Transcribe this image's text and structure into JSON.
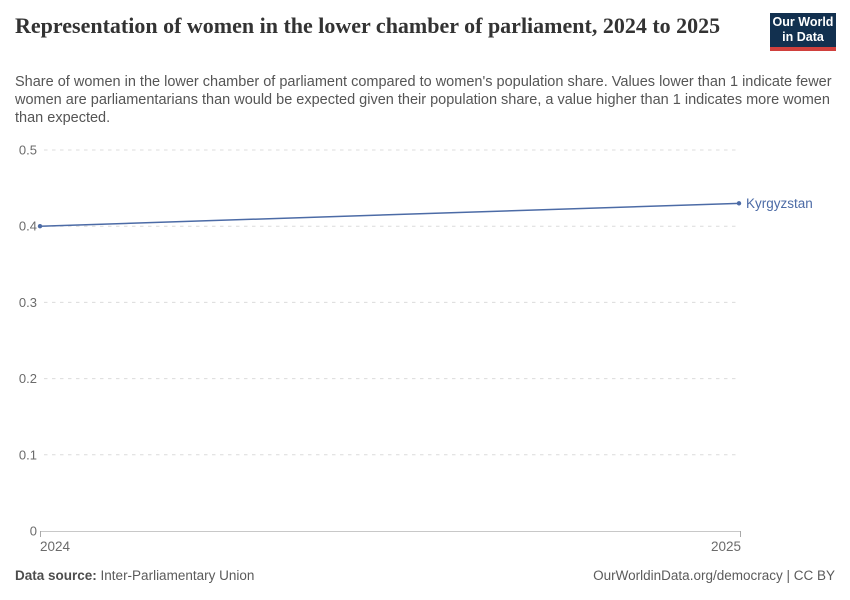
{
  "header": {
    "title": "Representation of women in the lower chamber of parliament, 2024 to 2025",
    "subtitle": "Share of women in the lower chamber of parliament compared to women's population share. Values lower than 1 indicate fewer women are parliamentarians than would be expected given their population share, a value higher than 1 indicates more women than expected.",
    "logo": {
      "line1": "Our World",
      "line2": "in Data"
    }
  },
  "chart_data": {
    "type": "line",
    "title": "Representation of women in the lower chamber of parliament, 2024 to 2025",
    "x": [
      2024,
      2025
    ],
    "x_tick_labels": [
      "2024",
      "2025"
    ],
    "series": [
      {
        "name": "Kyrgyzstan",
        "values": [
          0.4,
          0.43
        ],
        "color": "#4c6ba6"
      }
    ],
    "xlabel": "",
    "ylabel": "",
    "ylim": [
      0,
      0.5
    ],
    "y_ticks": [
      0,
      0.1,
      0.2,
      0.3,
      0.4,
      0.5
    ],
    "grid": "horizontal-dashed",
    "legend_position": "end-of-line-label",
    "entity_label": "Kyrgyzstan"
  },
  "footer": {
    "source_label": "Data source:",
    "source_value": "Inter-Parliamentary Union",
    "right_text": "OurWorldinData.org/democracy | CC BY"
  },
  "colors": {
    "line": "#4c6ba6",
    "logo_navy": "#12304f",
    "logo_red": "#d0403d",
    "title_text": "#333333",
    "subtitle_text": "#555555",
    "tick_label": "#6b6b6b",
    "gridline": "#dcdcdc",
    "axis_line": "#c8c8c8"
  }
}
